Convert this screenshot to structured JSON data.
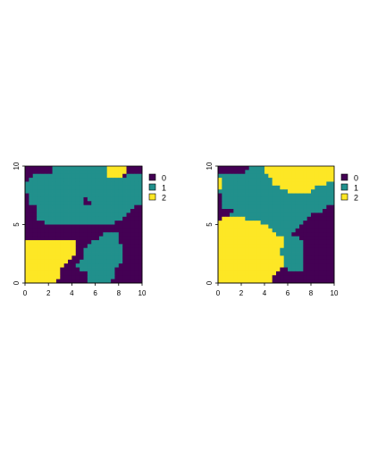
{
  "colors": {
    "0": "#440154",
    "1": "#21908C",
    "2": "#FDE725"
  },
  "chart_data": [
    {
      "type": "heatmap",
      "xlim": [
        0,
        10
      ],
      "ylim": [
        0,
        10
      ],
      "x_ticks": [
        "0",
        "2",
        "4",
        "6",
        "8",
        "10"
      ],
      "y_ticks": [
        "0",
        "5",
        "10"
      ],
      "legend": {
        "placement": "right",
        "entries": [
          "0",
          "1",
          "2"
        ]
      },
      "grid": false,
      "resolution": 30,
      "regions_note_key": "panel-1",
      "cluster_map": [
        "000000011111111111111222220000",
        "000000011111111111111222220000",
        "001111111111111111111222201111",
        "011111111111111111111111111111",
        "111111111111111111111111111111",
        "111111111111111111111111111111",
        "111111111111111111111111111111",
        "011111111111111111111111111111",
        "011111111111111011111111111111",
        "011111111111111001111111111111",
        "000111111111111111111111111100",
        "000111111111111111111111111000",
        "000111111111111111111111110000",
        "000111111111111111111111100000",
        "000001111111111111111110000000",
        "000000000000000000000000000000",
        "000000000000000000000000000000",
        "000000000000000000001111000000",
        "000000000000000000011111000000",
        "222222222222200001111111000000",
        "222222222222200011111111100000",
        "222222222222200111111111100000",
        "222222222222200111111111100000",
        "222222222222000111111111100000",
        "222222222220001111111111100000",
        "222222222200011111111111000000",
        "222222222000001111111110000000",
        "222222222000000011111110000000",
        "222222222000000011111110000000",
        "222222220000000011111100000000"
      ]
    },
    {
      "type": "heatmap",
      "xlim": [
        0,
        10
      ],
      "ylim": [
        0,
        10
      ],
      "x_ticks": [
        "0",
        "2",
        "4",
        "6",
        "8",
        "10"
      ],
      "y_ticks": [
        "0",
        "5",
        "10"
      ],
      "legend": {
        "placement": "right",
        "entries": [
          "0",
          "1",
          "2"
        ]
      },
      "grid": false,
      "resolution": 30,
      "regions_note_key": "panel-2",
      "cluster_map": [
        "000000001111222222222222222222",
        "000000011111222222222222222222",
        "111111111111122222222222222222",
        "211111111111112222222222222222",
        "211111111111112222222222222211",
        "211111111111111122222222211111",
        "111111111111111111222222111111",
        "011111111111111111111111111111",
        "011111111111111111111111111111",
        "011111111111111111111111111111",
        "011111111111111111111111111100",
        "000011111111111111111111111000",
        "000111111111111111111111000000",
        "022222211111111111111110000000",
        "222222222221111111111100000000",
        "222222222222211111111000000000",
        "222222222222221111110000000000",
        "222222222222222111100000000000",
        "222222222222222221111000000000",
        "222222222222222221111100000000",
        "222222222222222221111100000000",
        "222222222222222211111100000000",
        "222222222222222211111100000000",
        "222222222222222221111100000000",
        "222222222222222221111100000000",
        "222222222222222221111100000000",
        "222222222222222200111100000000",
        "222222222222222000000000000000",
        "222222222222220000000000000000",
        "222222222222220000000000000000"
      ]
    }
  ]
}
